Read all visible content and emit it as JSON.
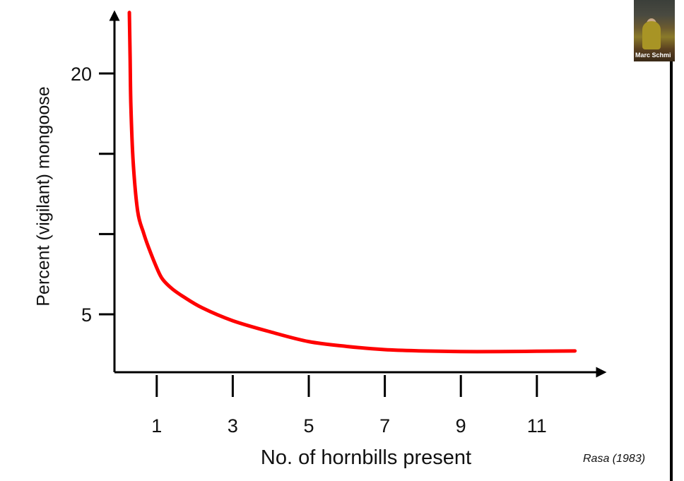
{
  "chart_data": {
    "type": "line",
    "title": "",
    "xlabel": "No. of hornbills present",
    "ylabel": "Percent (vigilant) mongoose",
    "x_ticks": [
      1,
      3,
      5,
      7,
      9,
      11
    ],
    "x_tick_labels": [
      "1",
      "3",
      "5",
      "7",
      "9",
      "11"
    ],
    "y_ticks": [
      5,
      10,
      15,
      20
    ],
    "y_tick_labels": [
      "5",
      "",
      "",
      "20"
    ],
    "xlim": [
      -0.1,
      12.8
    ],
    "ylim": [
      1.4,
      23.8
    ],
    "grid": false,
    "series": [
      {
        "color": "#ff0000",
        "x": [
          0.28,
          0.3,
          0.32,
          0.38,
          0.5,
          0.65,
          0.78,
          1.0,
          1.15,
          1.4,
          1.7,
          2.2,
          3.0,
          4.0,
          5.0,
          6.0,
          7.0,
          8.0,
          9.0,
          10.0,
          11.0,
          12.0
        ],
        "y": [
          23.8,
          21.0,
          18.0,
          14.5,
          11.4,
          10.1,
          9.2,
          7.9,
          7.2,
          6.6,
          6.1,
          5.4,
          4.6,
          3.9,
          3.3,
          3.0,
          2.8,
          2.72,
          2.68,
          2.68,
          2.7,
          2.72
        ]
      }
    ],
    "annotations": [
      "Rasa (1983)"
    ]
  },
  "video": {
    "name": "Marc Schmi"
  }
}
